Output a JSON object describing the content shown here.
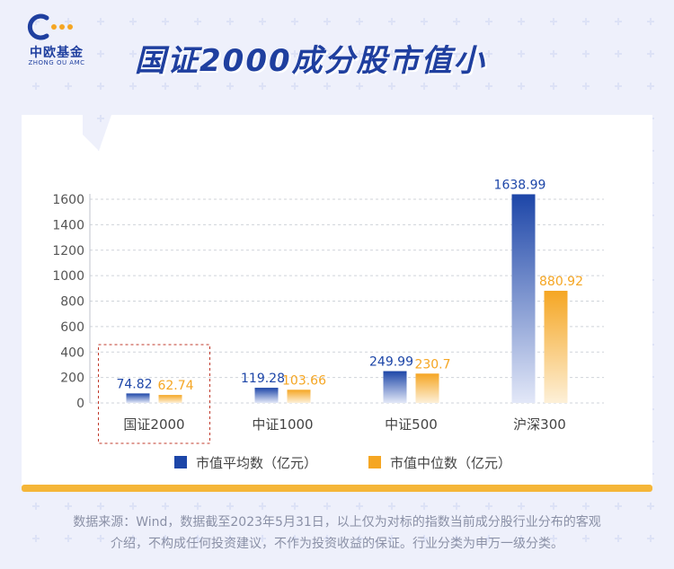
{
  "brand": {
    "name": "中欧基金",
    "name_en": "ZHONG OU AMC"
  },
  "page_title": "国证2000成分股市值小",
  "colors": {
    "background": "#eef0fb",
    "brand_blue": "#1f3f9f",
    "series_avg": "#1d46a8",
    "series_median": "#f5a623",
    "card_border": "#f5b638",
    "highlight_box": "#c0392b"
  },
  "chart_data": {
    "type": "bar",
    "title": "",
    "xlabel": "",
    "ylabel": "",
    "categories": [
      "国证2000",
      "中证1000",
      "中证500",
      "沪深300"
    ],
    "ylim": [
      0,
      1600
    ],
    "yticks": [
      0,
      200,
      400,
      600,
      800,
      1000,
      1200,
      1400,
      1600
    ],
    "grid": true,
    "legend_position": "bottom",
    "highlighted_category": "国证2000",
    "series": [
      {
        "name": "市值平均数（亿元）",
        "values": [
          74.82,
          119.28,
          249.99,
          1638.99
        ],
        "labels": [
          "74.82",
          "119.28",
          "249.99",
          "1638.99"
        ]
      },
      {
        "name": "市值中位数（亿元）",
        "values": [
          62.74,
          103.66,
          230.7,
          880.92
        ],
        "labels": [
          "62.74",
          "103.66",
          "230.7",
          "880.92"
        ]
      }
    ]
  },
  "footnote": {
    "line1": "数据来源：Wind，数据截至2023年5月31日，以上仅为对标的指数当前成分股行业分布的客观",
    "line2": "介绍，不构成任何投资建议，不作为投资收益的保证。行业分类为申万一级分类。"
  }
}
